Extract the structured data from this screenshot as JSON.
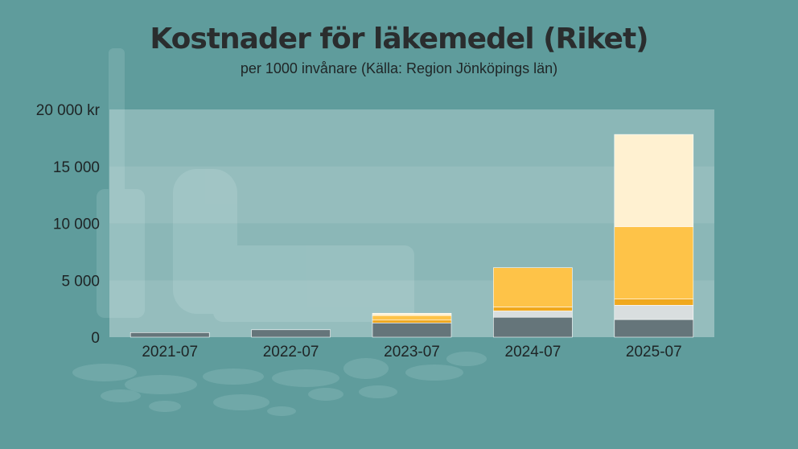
{
  "title": "Kostnader för läkemedel (Riket)",
  "subtitle": "per 1000 invånare (Källa: Region Jönköpings län)",
  "chart_data": {
    "type": "bar",
    "stacked": true,
    "categories": [
      "2021-07",
      "2022-07",
      "2023-07",
      "2024-07",
      "2025-07"
    ],
    "y_tick_labels": [
      "20 000 kr",
      "15 000",
      "10 000",
      "5 000",
      "0"
    ],
    "y_ticks": [
      20000,
      15000,
      10000,
      5000,
      0
    ],
    "ylim": [
      0,
      20000
    ],
    "grid": true,
    "legend": "none",
    "series": [
      {
        "color": "#65757a",
        "values": [
          400,
          650,
          1250,
          1750,
          1550
        ]
      },
      {
        "color": "#d9dedf",
        "values": [
          0,
          0,
          0,
          550,
          1250
        ]
      },
      {
        "color": "#f0a81d",
        "values": [
          0,
          0,
          250,
          350,
          550
        ]
      },
      {
        "color": "#fec348",
        "values": [
          0,
          0,
          400,
          3450,
          6350
        ]
      },
      {
        "color": "#fff1d1",
        "values": [
          0,
          0,
          200,
          0,
          8100
        ]
      }
    ]
  }
}
